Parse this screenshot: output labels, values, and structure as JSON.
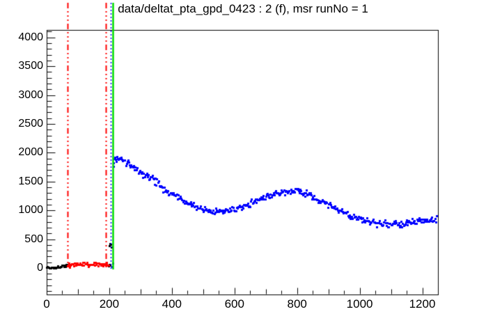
{
  "title": "data/deltat_pta_gpd_0423 : 2 (f), msr runNo = 1",
  "colors": {
    "background": "#ffffff",
    "frame": "#000000",
    "signal": "#0000ff",
    "background_window": "#ff0000",
    "pre_window": "#000000",
    "t0_line": "#00dd00",
    "range_line": "#ff0000",
    "data_range_line": "#0000ff"
  },
  "chart_data": {
    "type": "scatter",
    "title": "data/deltat_pta_gpd_0423 : 2 (f), msr runNo = 1",
    "xlabel": "",
    "ylabel": "",
    "grid": false,
    "legend": false,
    "xlim": [
      0,
      1250
    ],
    "ylim": [
      -460,
      4130
    ],
    "x_ticks": {
      "label_values": [
        0,
        200,
        400,
        600,
        800,
        1000,
        1200
      ],
      "major_step": 200,
      "medium_step": 100,
      "minor_step": 50
    },
    "y_ticks": {
      "label_values": [
        0,
        500,
        1000,
        1500,
        2000,
        2500,
        3000,
        3500,
        4000
      ],
      "major_step": 500,
      "minor_step": 100
    },
    "marker": {
      "shape": "square",
      "size": 3
    },
    "bin_width": 2.5,
    "series": [
      {
        "name": "pre-window-histogram",
        "color": "#000000",
        "noise_sigma": 10,
        "seed": 7,
        "range": [
          0,
          66
        ],
        "anchors": [
          [
            0,
            6
          ],
          [
            12,
            8
          ],
          [
            24,
            10
          ],
          [
            36,
            13
          ],
          [
            46,
            20
          ],
          [
            54,
            38
          ],
          [
            60,
            48
          ],
          [
            66,
            52
          ]
        ],
        "extra_points": [
          [
            199,
            30
          ],
          [
            201,
            55
          ],
          [
            203,
            45
          ],
          [
            201,
            385
          ],
          [
            203,
            425
          ],
          [
            205,
            405
          ],
          [
            206,
            360
          ]
        ]
      },
      {
        "name": "background-window-histogram",
        "color": "#ff0000",
        "noise_sigma": 18,
        "seed": 13,
        "range": [
          66,
          199
        ],
        "anchors": [
          [
            66,
            52
          ],
          [
            85,
            60
          ],
          [
            105,
            62
          ],
          [
            125,
            63
          ],
          [
            145,
            62
          ],
          [
            165,
            62
          ],
          [
            185,
            61
          ],
          [
            199,
            58
          ]
        ],
        "extra_points": [
          [
            191,
            95
          ]
        ]
      },
      {
        "name": "signal-histogram",
        "color": "#0000ff",
        "noise_sigma": 26,
        "seed": 21,
        "range": [
          215,
          1247
        ],
        "anchors": [
          [
            215,
            1880
          ],
          [
            225,
            1900
          ],
          [
            235,
            1890
          ],
          [
            250,
            1850
          ],
          [
            262,
            1810
          ],
          [
            275,
            1755
          ],
          [
            290,
            1690
          ],
          [
            305,
            1630
          ],
          [
            320,
            1592
          ],
          [
            338,
            1550
          ],
          [
            355,
            1480
          ],
          [
            370,
            1400
          ],
          [
            385,
            1330
          ],
          [
            400,
            1280
          ],
          [
            415,
            1235
          ],
          [
            430,
            1185
          ],
          [
            447,
            1125
          ],
          [
            465,
            1082
          ],
          [
            482,
            1048
          ],
          [
            500,
            1015
          ],
          [
            518,
            998
          ],
          [
            538,
            985
          ],
          [
            558,
            985
          ],
          [
            578,
            1000
          ],
          [
            598,
            1020
          ],
          [
            618,
            1048
          ],
          [
            638,
            1082
          ],
          [
            658,
            1135
          ],
          [
            678,
            1185
          ],
          [
            698,
            1240
          ],
          [
            718,
            1272
          ],
          [
            738,
            1300
          ],
          [
            758,
            1322
          ],
          [
            778,
            1338
          ],
          [
            798,
            1330
          ],
          [
            818,
            1300
          ],
          [
            838,
            1268
          ],
          [
            858,
            1220
          ],
          [
            878,
            1165
          ],
          [
            898,
            1110
          ],
          [
            918,
            1052
          ],
          [
            938,
            995
          ],
          [
            958,
            938
          ],
          [
            978,
            892
          ],
          [
            998,
            855
          ],
          [
            1018,
            822
          ],
          [
            1038,
            795
          ],
          [
            1058,
            778
          ],
          [
            1078,
            765
          ],
          [
            1098,
            758
          ],
          [
            1118,
            760
          ],
          [
            1138,
            772
          ],
          [
            1158,
            790
          ],
          [
            1178,
            812
          ],
          [
            1198,
            828
          ],
          [
            1218,
            840
          ],
          [
            1235,
            848
          ],
          [
            1247,
            855
          ]
        ],
        "extra_points": [
          [
            210,
            25
          ],
          [
            212,
            80
          ],
          [
            213,
            1820
          ],
          [
            214,
            1760
          ]
        ]
      }
    ],
    "vlines": [
      {
        "name": "background-window-start-line",
        "x": 66,
        "color": "#ff0000",
        "style": "dashdotdot",
        "width": 2
      },
      {
        "name": "background-window-end-line",
        "x": 190,
        "color": "#ff0000",
        "style": "dashdotdot",
        "width": 2
      },
      {
        "name": "data-range-start-line",
        "x": 205,
        "color": "#0000ff",
        "style": "dotted",
        "width": 1.5
      },
      {
        "name": "t0-line",
        "x": 211,
        "color": "#00dd00",
        "style": "solid",
        "width": 2.5
      }
    ]
  }
}
